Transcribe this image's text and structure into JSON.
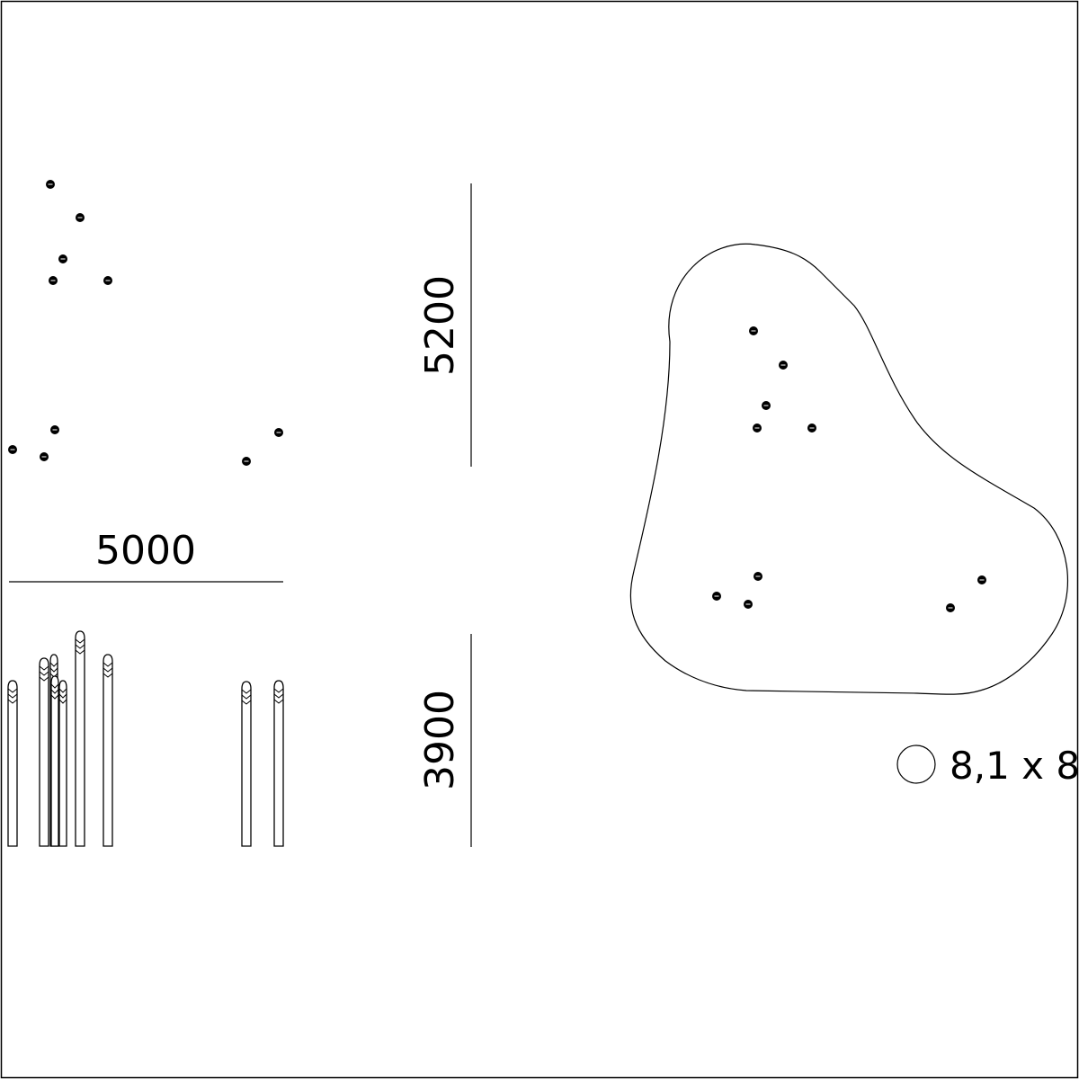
{
  "dimensions": {
    "width": "5000",
    "depth": "5200",
    "height": "3900"
  },
  "area_label": "8,1 x 8",
  "colors": {
    "line": "#000000",
    "background": "#ffffff"
  }
}
